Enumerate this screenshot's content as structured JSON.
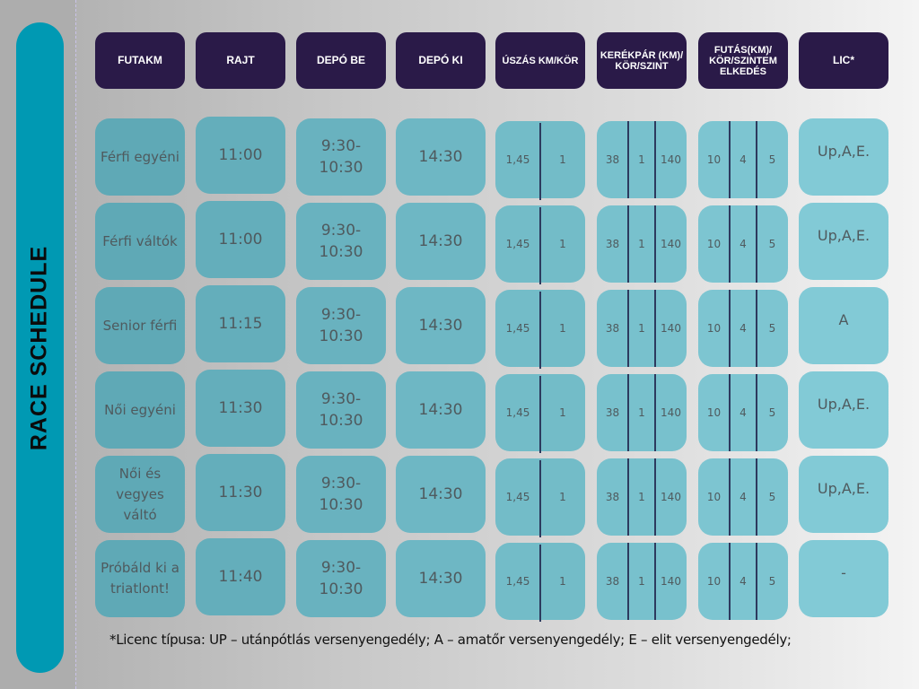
{
  "title": "RACE SCHEDULE",
  "colors": {
    "title_pill": "#0099b3",
    "header_bg": "#2a1a48",
    "header_text": "#ffffff",
    "cell_dark": "#5fa9b6",
    "cell_light": "#82cad6",
    "divider": "#2d3a5e"
  },
  "headers": [
    "FUTAKM",
    "RAJT",
    "DEPÓ BE",
    "DEPÓ KI",
    "ÚSZÁS KM/KÖR",
    "KERÉKPÁR (KM)/ KÖR/SZINT",
    "FUTÁS(KM)/ KÖR/SZINTEM ELKEDÉS",
    "LIC*"
  ],
  "rows": [
    {
      "category": "Férfi egyéni",
      "start": "11:00",
      "depot_in": "9:30- 10:30",
      "depot_out": "14:30",
      "swim": [
        "1,45",
        "1"
      ],
      "bike": [
        "38",
        "1",
        "140"
      ],
      "run": [
        "10",
        "4",
        "5"
      ],
      "license": "Up,A,E."
    },
    {
      "category": "Férfi váltók",
      "start": "11:00",
      "depot_in": "9:30- 10:30",
      "depot_out": "14:30",
      "swim": [
        "1,45",
        "1"
      ],
      "bike": [
        "38",
        "1",
        "140"
      ],
      "run": [
        "10",
        "4",
        "5"
      ],
      "license": "Up,A,E."
    },
    {
      "category": "Senior férfi",
      "start": "11:15",
      "depot_in": "9:30- 10:30",
      "depot_out": "14:30",
      "swim": [
        "1,45",
        "1"
      ],
      "bike": [
        "38",
        "1",
        "140"
      ],
      "run": [
        "10",
        "4",
        "5"
      ],
      "license": "A"
    },
    {
      "category": "Női egyéni",
      "start": "11:30",
      "depot_in": "9:30- 10:30",
      "depot_out": "14:30",
      "swim": [
        "1,45",
        "1"
      ],
      "bike": [
        "38",
        "1",
        "140"
      ],
      "run": [
        "10",
        "4",
        "5"
      ],
      "license": "Up,A,E."
    },
    {
      "category": "Női és vegyes váltó",
      "start": "11:30",
      "depot_in": "9:30- 10:30",
      "depot_out": "14:30",
      "swim": [
        "1,45",
        "1"
      ],
      "bike": [
        "38",
        "1",
        "140"
      ],
      "run": [
        "10",
        "4",
        "5"
      ],
      "license": "Up,A,E."
    },
    {
      "category": "Próbáld ki a triatlont!",
      "start": "11:40",
      "depot_in": "9:30- 10:30",
      "depot_out": "14:30",
      "swim": [
        "1,45",
        "1"
      ],
      "bike": [
        "38",
        "1",
        "140"
      ],
      "run": [
        "10",
        "4",
        "5"
      ],
      "license": "-"
    }
  ],
  "footnote": "*Licenc típusa: UP – utánpótlás versenyengedély; A – amatőr versenyengedély; E – elit versenyengedély;"
}
